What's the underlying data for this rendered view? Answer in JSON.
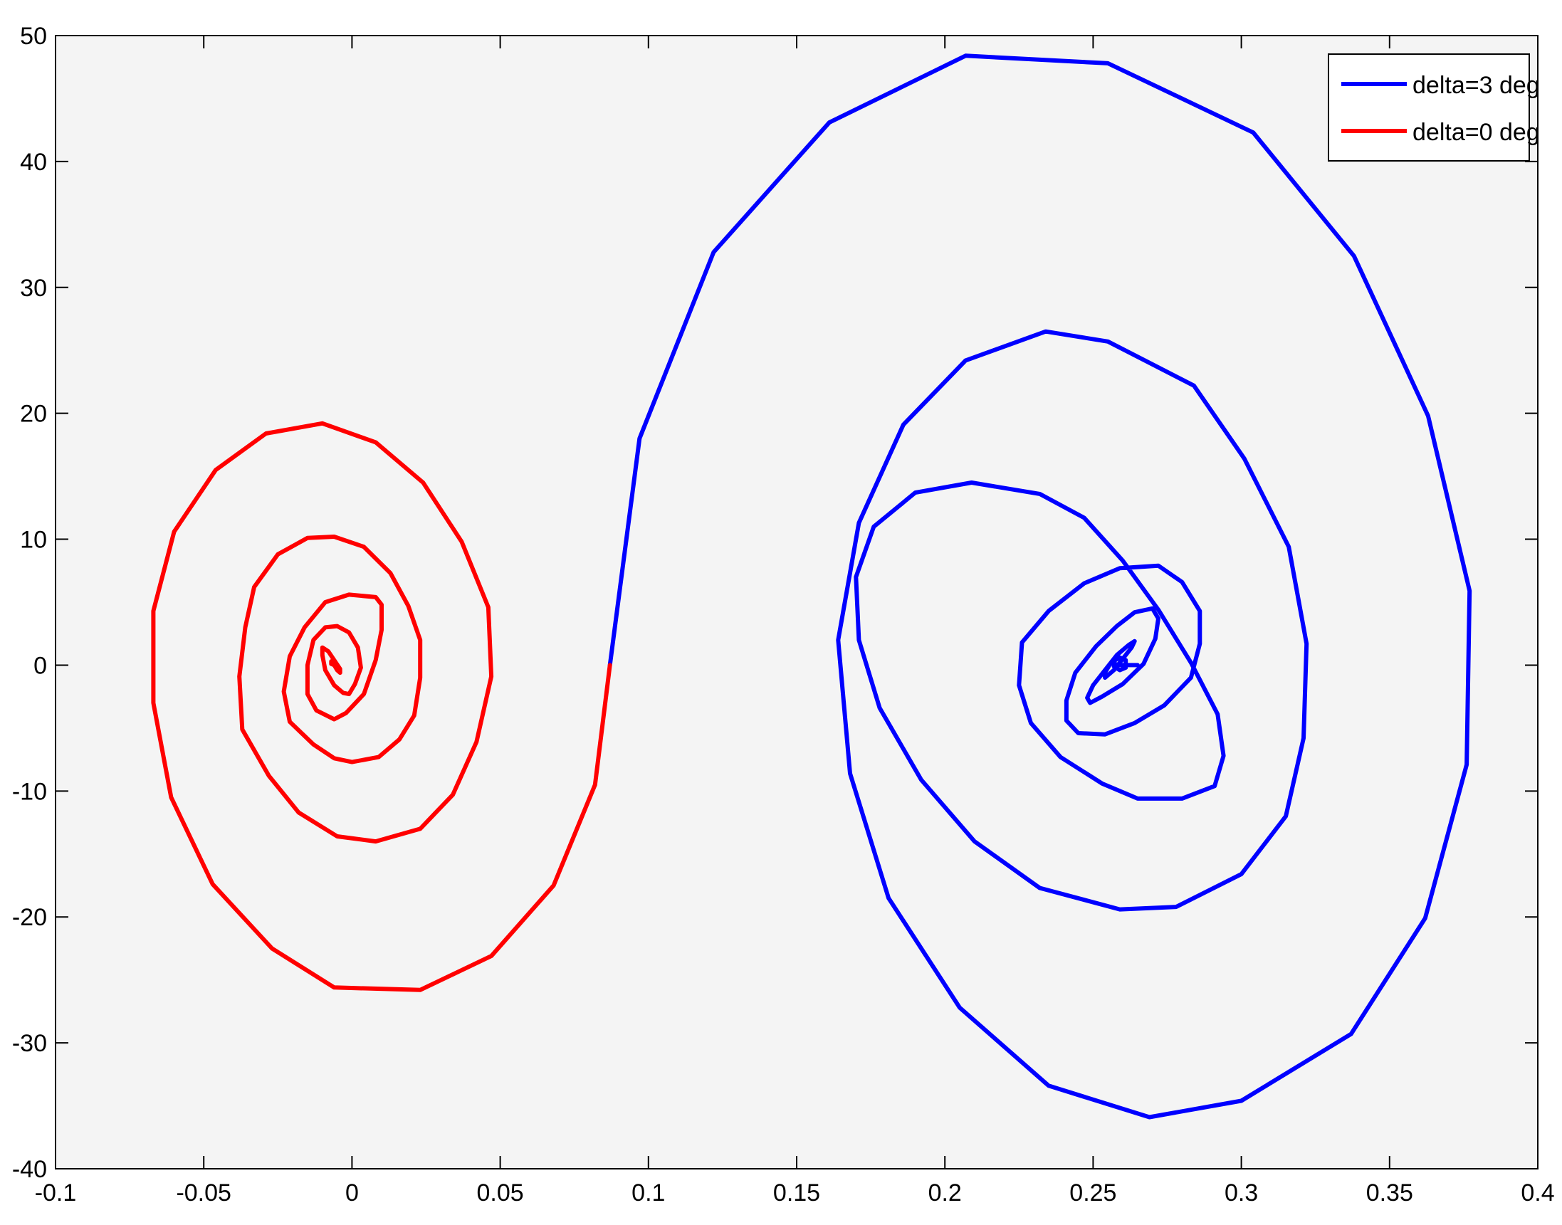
{
  "chart_data": {
    "type": "line",
    "title": "",
    "xlabel": "",
    "ylabel": "",
    "xlim": [
      -0.1,
      0.4
    ],
    "ylim": [
      -40,
      50
    ],
    "xticks": [
      -0.1,
      -0.05,
      0,
      0.05,
      0.1,
      0.15,
      0.2,
      0.25,
      0.3,
      0.35,
      0.4
    ],
    "xtick_labels": [
      "-0.1",
      "-0.05",
      "0",
      "0.05",
      "0.1",
      "0.15",
      "0.2",
      "0.25",
      "0.3",
      "0.35",
      "0.4"
    ],
    "yticks": [
      -40,
      -30,
      -20,
      -10,
      0,
      10,
      20,
      30,
      40,
      50
    ],
    "ytick_labels": [
      "-40",
      "-30",
      "-20",
      "-10",
      "0",
      "10",
      "20",
      "30",
      "40",
      "50"
    ],
    "grid": false,
    "legend_position": "top-right",
    "background": "#f4f4f4",
    "series": [
      {
        "name": "delta=3 deg",
        "color": "#0000ff",
        "x": [
          0.087,
          0.097,
          0.122,
          0.161,
          0.207,
          0.255,
          0.304,
          0.338,
          0.363,
          0.377,
          0.376,
          0.362,
          0.337,
          0.3,
          0.269,
          0.235,
          0.205,
          0.181,
          0.168,
          0.164,
          0.171,
          0.186,
          0.207,
          0.234,
          0.255,
          0.284,
          0.301,
          0.316,
          0.322,
          0.321,
          0.315,
          0.3,
          0.278,
          0.259,
          0.232,
          0.21,
          0.192,
          0.178,
          0.171,
          0.17,
          0.176,
          0.19,
          0.209,
          0.232,
          0.247,
          0.26,
          0.272,
          0.283,
          0.292,
          0.294,
          0.291,
          0.28,
          0.265,
          0.253,
          0.239,
          0.229,
          0.225,
          0.226,
          0.235,
          0.247,
          0.259,
          0.272,
          0.28,
          0.286,
          0.286,
          0.283,
          0.274,
          0.264,
          0.254,
          0.245,
          0.241,
          0.241,
          0.244,
          0.251,
          0.258,
          0.264,
          0.27,
          0.272,
          0.271,
          0.267,
          0.26,
          0.253,
          0.249,
          0.248,
          0.25,
          0.254,
          0.258,
          0.262,
          0.264,
          0.263,
          0.26,
          0.257,
          0.254,
          0.254,
          0.256,
          0.259,
          0.261,
          0.261,
          0.259,
          0.257,
          0.257,
          0.258,
          0.265
        ],
        "y": [
          0,
          18,
          32.8,
          43.1,
          48.4,
          47.8,
          42.3,
          32.5,
          19.8,
          5.9,
          -7.9,
          -20.1,
          -29.3,
          -34.6,
          -35.9,
          -33.4,
          -27.2,
          -18.5,
          -8.6,
          2,
          11.3,
          19.1,
          24.2,
          26.5,
          25.7,
          22.2,
          16.4,
          9.4,
          1.7,
          -5.8,
          -12,
          -16.6,
          -19.2,
          -19.4,
          -17.7,
          -14,
          -9.1,
          -3.4,
          2,
          7,
          11,
          13.7,
          14.5,
          13.6,
          11.7,
          8.3,
          4.4,
          0.2,
          -3.9,
          -7.2,
          -9.6,
          -10.6,
          -10.6,
          -9.4,
          -7.3,
          -4.6,
          -1.6,
          1.8,
          4.3,
          6.5,
          7.7,
          7.9,
          6.6,
          4.3,
          1.7,
          -1,
          -3.2,
          -4.6,
          -5.5,
          -5.4,
          -4.4,
          -2.8,
          -0.6,
          1.5,
          3.1,
          4.2,
          4.5,
          3.7,
          2.1,
          0.1,
          -1.5,
          -2.5,
          -3.0,
          -2.6,
          -1.6,
          -0.4,
          0.8,
          1.6,
          1.9,
          1.4,
          0.5,
          -0.4,
          -1.0,
          -0.6,
          0.2,
          0.6,
          0.4,
          -0.2,
          -0.4,
          -0.1,
          0.2,
          0,
          0
        ]
      },
      {
        "name": "delta=0 deg",
        "color": "#ff0000",
        "x": [
          0.087,
          0.082,
          0.068,
          0.047,
          0.023,
          -0.006,
          -0.027,
          -0.047,
          -0.061,
          -0.067,
          -0.067,
          -0.06,
          -0.046,
          -0.029,
          -0.01,
          0.008,
          0.024,
          0.037,
          0.046,
          0.047,
          0.042,
          0.034,
          0.023,
          0.008,
          -0.005,
          -0.018,
          -0.028,
          -0.037,
          -0.038,
          -0.036,
          -0.033,
          -0.025,
          -0.015,
          -0.006,
          0.004,
          0.013,
          0.019,
          0.023,
          0.023,
          0.021,
          0.016,
          0.009,
          0,
          -0.006,
          -0.013,
          -0.021,
          -0.023,
          -0.021,
          -0.016,
          -0.009,
          -0.001,
          0.008,
          0.01,
          0.01,
          0.008,
          0.004,
          -0.002,
          -0.006,
          -0.012,
          -0.015,
          -0.015,
          -0.013,
          -0.009,
          -0.005,
          -0.001,
          0.002,
          0.003,
          0.001,
          -0.001,
          -0.003,
          -0.006,
          -0.009,
          -0.01,
          -0.01,
          -0.008,
          -0.006,
          -0.004,
          -0.004,
          -0.005,
          -0.006,
          -0.007,
          -0.007,
          -0.006
        ],
        "y": [
          0,
          -9.5,
          -17.5,
          -23.1,
          -25.8,
          -25.6,
          -22.5,
          -17.4,
          -10.5,
          -3,
          4.3,
          10.6,
          15.5,
          18.4,
          19.2,
          17.7,
          14.5,
          9.8,
          4.6,
          -0.9,
          -6.1,
          -10.3,
          -13,
          -14,
          -13.6,
          -11.7,
          -8.8,
          -5.1,
          -0.9,
          3,
          6.2,
          8.8,
          10.1,
          10.2,
          9.4,
          7.3,
          4.7,
          2,
          -1,
          -4,
          -5.9,
          -7.3,
          -7.7,
          -7.4,
          -6.3,
          -4.5,
          -2.1,
          0.7,
          3,
          5,
          5.6,
          5.4,
          4.8,
          2.8,
          0.4,
          -2.3,
          -3.8,
          -4.3,
          -3.6,
          -2.3,
          0,
          2.0,
          3,
          3.1,
          2.6,
          1.4,
          -0.2,
          -1.5,
          -2.3,
          -2.2,
          -1.6,
          -0.4,
          0.8,
          1.4,
          1.1,
          0.4,
          -0.3,
          -0.6,
          -0.4,
          0,
          0.3,
          0.1,
          0
        ]
      }
    ]
  }
}
